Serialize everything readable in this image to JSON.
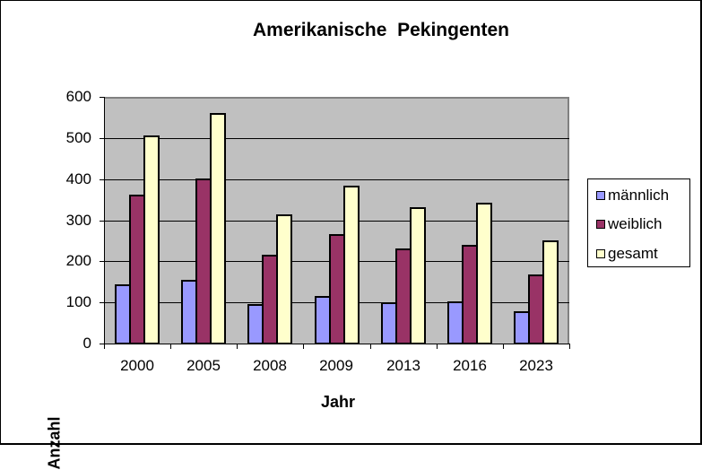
{
  "chart_data": {
    "type": "bar",
    "title": "Amerikanische  Pekingenten",
    "xlabel": "Jahr",
    "ylabel": "Anzahl",
    "ylim": [
      0,
      600
    ],
    "yticks": [
      0,
      100,
      200,
      300,
      400,
      500,
      600
    ],
    "grid": true,
    "legend_position": "right",
    "categories": [
      "2000",
      "2005",
      "2008",
      "2009",
      "2013",
      "2016",
      "2023"
    ],
    "series": [
      {
        "name": "männlich",
        "color": "#9999ff",
        "values": [
          144,
          155,
          96,
          116,
          101,
          103,
          79
        ]
      },
      {
        "name": "weiblich",
        "color": "#993366",
        "values": [
          362,
          401,
          216,
          267,
          232,
          240,
          168
        ]
      },
      {
        "name": "gesamt",
        "color": "#ffffcc",
        "values": [
          507,
          560,
          315,
          385,
          332,
          343,
          250
        ]
      }
    ]
  },
  "colors": {
    "plot_background": "#c0c0c0",
    "plot_border": "#808080",
    "gridline": "#000000"
  }
}
